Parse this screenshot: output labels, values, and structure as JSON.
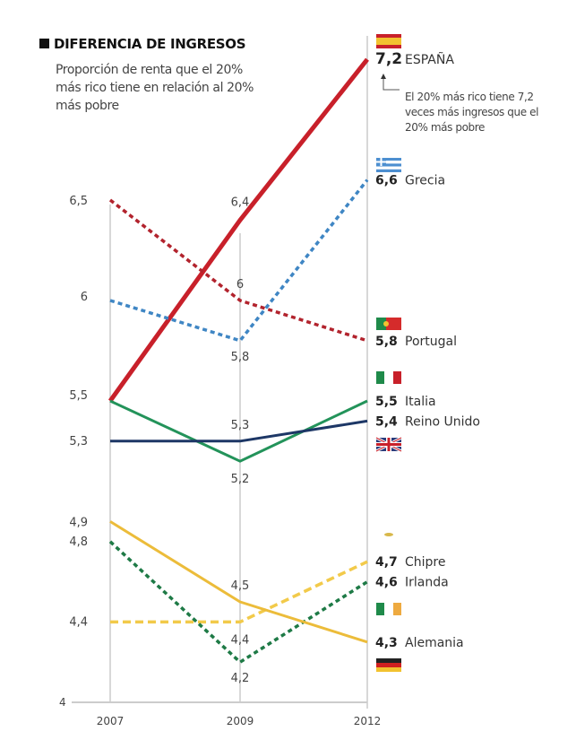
{
  "chart_data": {
    "type": "line",
    "title": "DIFERENCIA DE INGRESOS",
    "subtitle": "Proporción de renta que el 20% más rico tiene en relación al 20% más pobre",
    "annotation": "El 20% más rico tiene 7,2 veces más ingresos que el 20% más pobre",
    "categories": [
      "2007",
      "2009",
      "2012"
    ],
    "y_axis_min_label": "4",
    "ylim": [
      4,
      7.3
    ],
    "grid": false,
    "series": [
      {
        "name": "ESPAÑA",
        "values": [
          5.5,
          6.4,
          7.2
        ],
        "labels": [
          "5,5",
          "6,4",
          "7,2"
        ],
        "color": "#c8202a",
        "style": "solid",
        "flag": "spain-flag"
      },
      {
        "name": "Grecia",
        "values": [
          6.0,
          5.8,
          6.6
        ],
        "labels": [
          "6",
          "5,8",
          "6,6"
        ],
        "color": "#3f86c4",
        "style": "dotted",
        "flag": "greece-flag"
      },
      {
        "name": "Portugal",
        "values": [
          6.5,
          6.0,
          5.8
        ],
        "labels": [
          "6,5",
          "6",
          "5,8"
        ],
        "color": "#b2232d",
        "style": "dotted",
        "flag": "portugal-flag"
      },
      {
        "name": "Italia",
        "values": [
          5.5,
          5.2,
          5.5
        ],
        "labels": [
          "",
          "5,2",
          "5,5"
        ],
        "color": "#23935a",
        "style": "solid",
        "flag": "italy-flag"
      },
      {
        "name": "Reino Unido",
        "values": [
          5.3,
          5.3,
          5.4
        ],
        "labels": [
          "5,3",
          "5,3",
          "5,4"
        ],
        "color": "#1d3766",
        "style": "solid",
        "flag": "uk-flag"
      },
      {
        "name": "Chipre",
        "values": [
          4.4,
          4.4,
          4.7
        ],
        "labels": [
          "4,4",
          "4,4",
          "4,7"
        ],
        "color": "#f2ca4a",
        "style": "dashed",
        "flag": "cyprus-flag"
      },
      {
        "name": "Irlanda",
        "values": [
          4.8,
          4.2,
          4.6
        ],
        "labels": [
          "4,8",
          "4,2",
          "4,6"
        ],
        "color": "#1e7a46",
        "style": "dotted",
        "flag": "ireland-flag"
      },
      {
        "name": "Alemania",
        "values": [
          4.9,
          4.5,
          4.3
        ],
        "labels": [
          "4,9",
          "4,5",
          "4,3"
        ],
        "color": "#ecbc3a",
        "style": "solid",
        "flag": "germany-flag"
      }
    ]
  }
}
